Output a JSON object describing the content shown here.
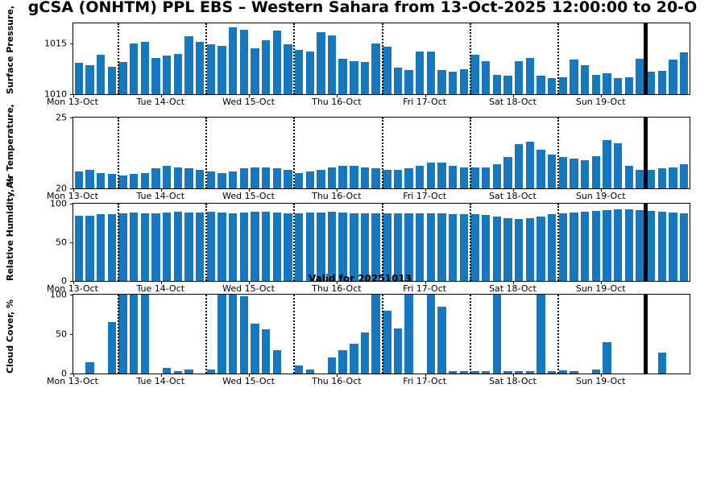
{
  "page": {
    "title": "gCSA (ONHTM) PPL EBS  – Western Sahara from 13-Oct-2025 12:00:00 to 20-O",
    "valid_label": "Valid for 20251013"
  },
  "colors": {
    "bar": "#1878be",
    "axis": "#000000",
    "background": "#ffffff"
  },
  "x_axis": {
    "day_labels": [
      "Mon 13-Oct",
      "Tue 14-Oct",
      "Wed 15-Oct",
      "Thu 16-Oct",
      "Fri 17-Oct",
      "Sat 18-Oct",
      "Sun 19-Oct"
    ],
    "n_bars": 56,
    "day_line_indices": [
      4,
      12,
      20,
      28,
      36,
      44
    ],
    "heavy_line_index": 52,
    "label_center_indices": [
      0,
      8,
      16,
      24,
      32,
      40,
      48
    ]
  },
  "chart_data": [
    {
      "type": "bar",
      "ylabel": "Surface Pressure,",
      "ylim": [
        1010,
        1017
      ],
      "yticks": [
        1010,
        1015
      ],
      "values": [
        1013.1,
        1012.9,
        1013.9,
        1012.7,
        1013.2,
        1015.0,
        1015.2,
        1013.6,
        1013.8,
        1014.0,
        1015.7,
        1015.2,
        1014.9,
        1014.8,
        1016.6,
        1016.4,
        1014.5,
        1015.3,
        1016.3,
        1014.9,
        1014.4,
        1014.2,
        1016.1,
        1015.8,
        1013.5,
        1013.3,
        1013.2,
        1015.0,
        1014.7,
        1012.6,
        1012.4,
        1014.2,
        1014.2,
        1012.4,
        1012.2,
        1012.5,
        1013.9,
        1013.3,
        1011.9,
        1011.8,
        1013.3,
        1013.6,
        1011.8,
        1011.6,
        1011.7,
        1013.4,
        1012.9,
        1011.9,
        1012.1,
        1011.6,
        1011.7,
        1013.5,
        1012.2,
        1012.3,
        1013.4,
        1014.1
      ]
    },
    {
      "type": "bar",
      "ylabel": "Air Temperature,",
      "ylim": [
        20,
        25
      ],
      "yticks": [
        20,
        25
      ],
      "values": [
        21.2,
        21.3,
        21.1,
        21.0,
        20.9,
        21.0,
        21.1,
        21.4,
        21.6,
        21.5,
        21.4,
        21.3,
        21.2,
        21.1,
        21.2,
        21.4,
        21.5,
        21.5,
        21.4,
        21.3,
        21.1,
        21.2,
        21.3,
        21.5,
        21.6,
        21.6,
        21.5,
        21.4,
        21.3,
        21.3,
        21.4,
        21.6,
        21.8,
        21.8,
        21.6,
        21.5,
        21.5,
        21.5,
        21.7,
        22.2,
        23.1,
        23.3,
        22.7,
        22.4,
        22.2,
        22.1,
        22.0,
        22.3,
        23.4,
        23.2,
        21.6,
        21.3,
        21.3,
        21.4,
        21.5,
        21.7
      ]
    },
    {
      "type": "bar",
      "ylabel": "Relative Humidity, %",
      "ylim": [
        0,
        100
      ],
      "yticks": [
        0,
        50,
        100
      ],
      "values": [
        84,
        84,
        86,
        86,
        88,
        89,
        88,
        88,
        89,
        90,
        89,
        89,
        90,
        89,
        88,
        89,
        90,
        90,
        89,
        88,
        88,
        89,
        89,
        90,
        89,
        88,
        88,
        87,
        87,
        87,
        88,
        88,
        87,
        87,
        86,
        86,
        86,
        85,
        83,
        81,
        80,
        81,
        83,
        86,
        87,
        89,
        90,
        91,
        92,
        93,
        93,
        92,
        91,
        90,
        89,
        88
      ]
    },
    {
      "type": "bar",
      "ylabel": "Cloud Cover, %",
      "ylim": [
        0,
        100
      ],
      "yticks": [
        0,
        50,
        100
      ],
      "values": [
        0,
        14,
        0,
        65,
        100,
        100,
        100,
        0,
        7,
        3,
        5,
        0,
        5,
        100,
        100,
        98,
        63,
        56,
        30,
        0,
        10,
        5,
        0,
        20,
        30,
        38,
        52,
        100,
        80,
        57,
        100,
        0,
        100,
        85,
        3,
        3,
        3,
        3,
        100,
        3,
        3,
        3,
        100,
        3,
        4,
        3,
        0,
        5,
        40,
        0,
        0,
        0,
        0,
        27,
        0,
        0
      ]
    }
  ]
}
